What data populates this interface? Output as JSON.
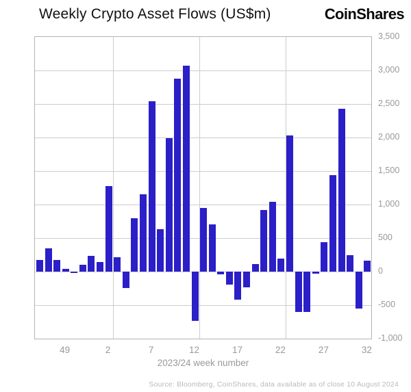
{
  "title": "Weekly Crypto Asset Flows (US$m)",
  "logo": "CoinShares",
  "footer": "Source: Bloomberg, CoinShares, data available as of close 10 August 2024",
  "colors": {
    "bar": "#2B1FC7",
    "gridline": "#cccccc",
    "plot_border": "#b3b3b3",
    "tick_label": "#999999",
    "title_text": "#111111",
    "footer_text": "#b7babc"
  },
  "chart_data": {
    "type": "bar",
    "title": "Weekly Crypto Asset Flows (US$m)",
    "xlabel": "2023/24 week number",
    "ylabel": "",
    "ylim": [
      -1000,
      3500
    ],
    "grid": true,
    "legend": "none",
    "bar_color": "#2B1FC7",
    "y_ticks": [
      3500,
      3000,
      2500,
      2000,
      1500,
      1000,
      500,
      0,
      -500,
      -1000
    ],
    "y_tick_labels": [
      "3,500",
      "3,000",
      "2,500",
      "2,000",
      "1,500",
      "1,000",
      "500",
      "0",
      "-500",
      "-1,000"
    ],
    "categories": [
      "46",
      "47",
      "48",
      "49",
      "50",
      "51",
      "52",
      "1",
      "2",
      "3",
      "4",
      "5",
      "6",
      "7",
      "8",
      "9",
      "10",
      "11",
      "12",
      "13",
      "14",
      "15",
      "16",
      "17",
      "18",
      "19",
      "20",
      "21",
      "22",
      "23",
      "24",
      "25",
      "26",
      "27",
      "28",
      "29",
      "30",
      "31",
      "32"
    ],
    "values": [
      170,
      350,
      170,
      45,
      -25,
      100,
      235,
      145,
      1280,
      215,
      -240,
      800,
      1155,
      2540,
      630,
      1990,
      2880,
      3070,
      -730,
      950,
      705,
      -45,
      -195,
      -415,
      -235,
      115,
      915,
      1040,
      190,
      2035,
      -600,
      -600,
      -30,
      440,
      1440,
      2430,
      250,
      -550,
      160
    ],
    "x_ticks": [
      {
        "index": 3,
        "label": "49"
      },
      {
        "index": 8,
        "label": "2"
      },
      {
        "index": 13,
        "label": "7"
      },
      {
        "index": 18,
        "label": "12"
      },
      {
        "index": 23,
        "label": "17"
      },
      {
        "index": 28,
        "label": "22"
      },
      {
        "index": 33,
        "label": "27"
      },
      {
        "index": 38,
        "label": "32"
      }
    ],
    "v_grid_after_index": [
      8,
      18,
      28
    ]
  }
}
